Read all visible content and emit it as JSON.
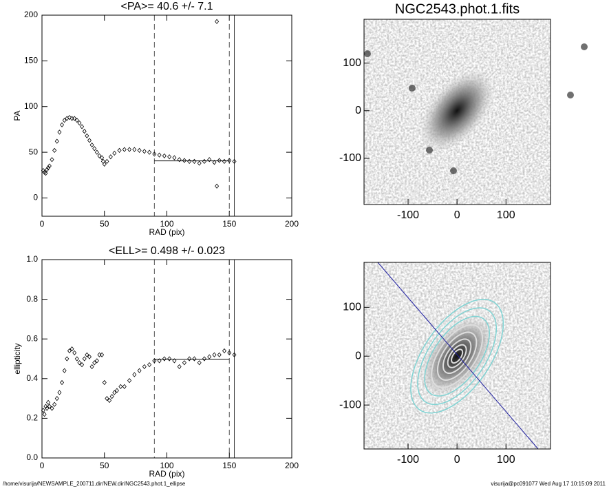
{
  "chart_data": [
    {
      "type": "scatter",
      "title": "<PA>=  40.6 +/-   7.1",
      "x_label": "RAD (pix)",
      "y_label": "PA",
      "x": [
        1,
        2,
        3,
        4,
        5,
        6,
        8,
        10,
        12,
        14,
        16,
        18,
        20,
        22,
        24,
        26,
        28,
        30,
        32,
        34,
        36,
        38,
        40,
        42,
        44,
        46,
        48,
        49,
        50,
        52,
        55,
        58,
        62,
        66,
        70,
        74,
        78,
        82,
        86,
        90,
        94,
        98,
        102,
        106,
        110,
        114,
        118,
        122,
        126,
        130,
        134,
        138,
        140,
        140,
        142,
        146,
        150,
        154
      ],
      "values": [
        30,
        28,
        27,
        31,
        33,
        35,
        42,
        52,
        62,
        72,
        80,
        85,
        87,
        88,
        87,
        87,
        85,
        82,
        78,
        73,
        68,
        63,
        58,
        54,
        50,
        46,
        44,
        40,
        37,
        40,
        45,
        49,
        52,
        53,
        53,
        53,
        52,
        51,
        50,
        48,
        47,
        46,
        45,
        44,
        42,
        41,
        40,
        40,
        38,
        40,
        42,
        39,
        193,
        13,
        41,
        40,
        41,
        40
      ],
      "color": "#000000",
      "xlim": [
        0,
        200
      ],
      "ylim": [
        -20,
        200
      ],
      "xticks": [
        0,
        50,
        100,
        150,
        200
      ],
      "yticks": [
        0,
        50,
        100,
        150,
        200
      ],
      "dashed_lines": [
        90,
        150
      ],
      "solid_line": 154,
      "mean_line": 40.6
    },
    {
      "type": "image",
      "title": "NGC2543.phot.1.fits",
      "xlim": [
        -190,
        191
      ],
      "ylim": [
        -197,
        192
      ],
      "xticks": [
        -100,
        0,
        100
      ],
      "yticks": [
        -100,
        0,
        100
      ]
    },
    {
      "type": "scatter",
      "title": "<ELL>= 0.498 +/-  0.023",
      "x_label": "RAD (pix)",
      "y_label": "ellipticity",
      "x": [
        1,
        2,
        3,
        4,
        5,
        6,
        8,
        10,
        12,
        14,
        16,
        18,
        20,
        22,
        24,
        26,
        28,
        30,
        32,
        34,
        36,
        38,
        40,
        42,
        44,
        46,
        48,
        50,
        52,
        54,
        56,
        58,
        60,
        63,
        66,
        70,
        74,
        78,
        82,
        86,
        90,
        94,
        98,
        102,
        106,
        110,
        114,
        118,
        122,
        126,
        130,
        134,
        138,
        142,
        146,
        150,
        154
      ],
      "values": [
        0.24,
        0.22,
        0.26,
        0.25,
        0.28,
        0.26,
        0.25,
        0.27,
        0.3,
        0.33,
        0.38,
        0.44,
        0.5,
        0.54,
        0.55,
        0.53,
        0.5,
        0.48,
        0.47,
        0.5,
        0.52,
        0.51,
        0.46,
        0.48,
        0.49,
        0.52,
        0.52,
        0.38,
        0.3,
        0.29,
        0.31,
        0.33,
        0.34,
        0.36,
        0.36,
        0.39,
        0.42,
        0.44,
        0.46,
        0.47,
        0.49,
        0.49,
        0.5,
        0.5,
        0.49,
        0.46,
        0.48,
        0.5,
        0.5,
        0.48,
        0.5,
        0.51,
        0.52,
        0.52,
        0.54,
        0.53,
        0.52
      ],
      "color": "#000000",
      "xlim": [
        0,
        200
      ],
      "ylim": [
        0,
        1
      ],
      "xticks": [
        0,
        50,
        100,
        150,
        200
      ],
      "yticks": [
        {
          "value": 0,
          "label": "0.0"
        },
        0.2,
        0.4,
        0.6,
        0.8,
        {
          "value": 1,
          "label": "1.0"
        }
      ],
      "dashed_lines": [
        90,
        150
      ],
      "solid_line": 154,
      "mean_line": 0.498
    },
    {
      "type": "image",
      "xlim": [
        -190,
        191
      ],
      "ylim": [
        -190,
        192
      ],
      "xticks": [
        -100,
        0,
        100
      ],
      "yticks": [
        -100,
        0,
        100
      ]
    }
  ],
  "footer_left": "/home/visurija/NEWSAMPLE_200711.dir/NEW.dir/NGC2543.phot.1_ellipse",
  "footer_right": "visurija@pc091077  Wed Aug 17 10:15:09 2011"
}
